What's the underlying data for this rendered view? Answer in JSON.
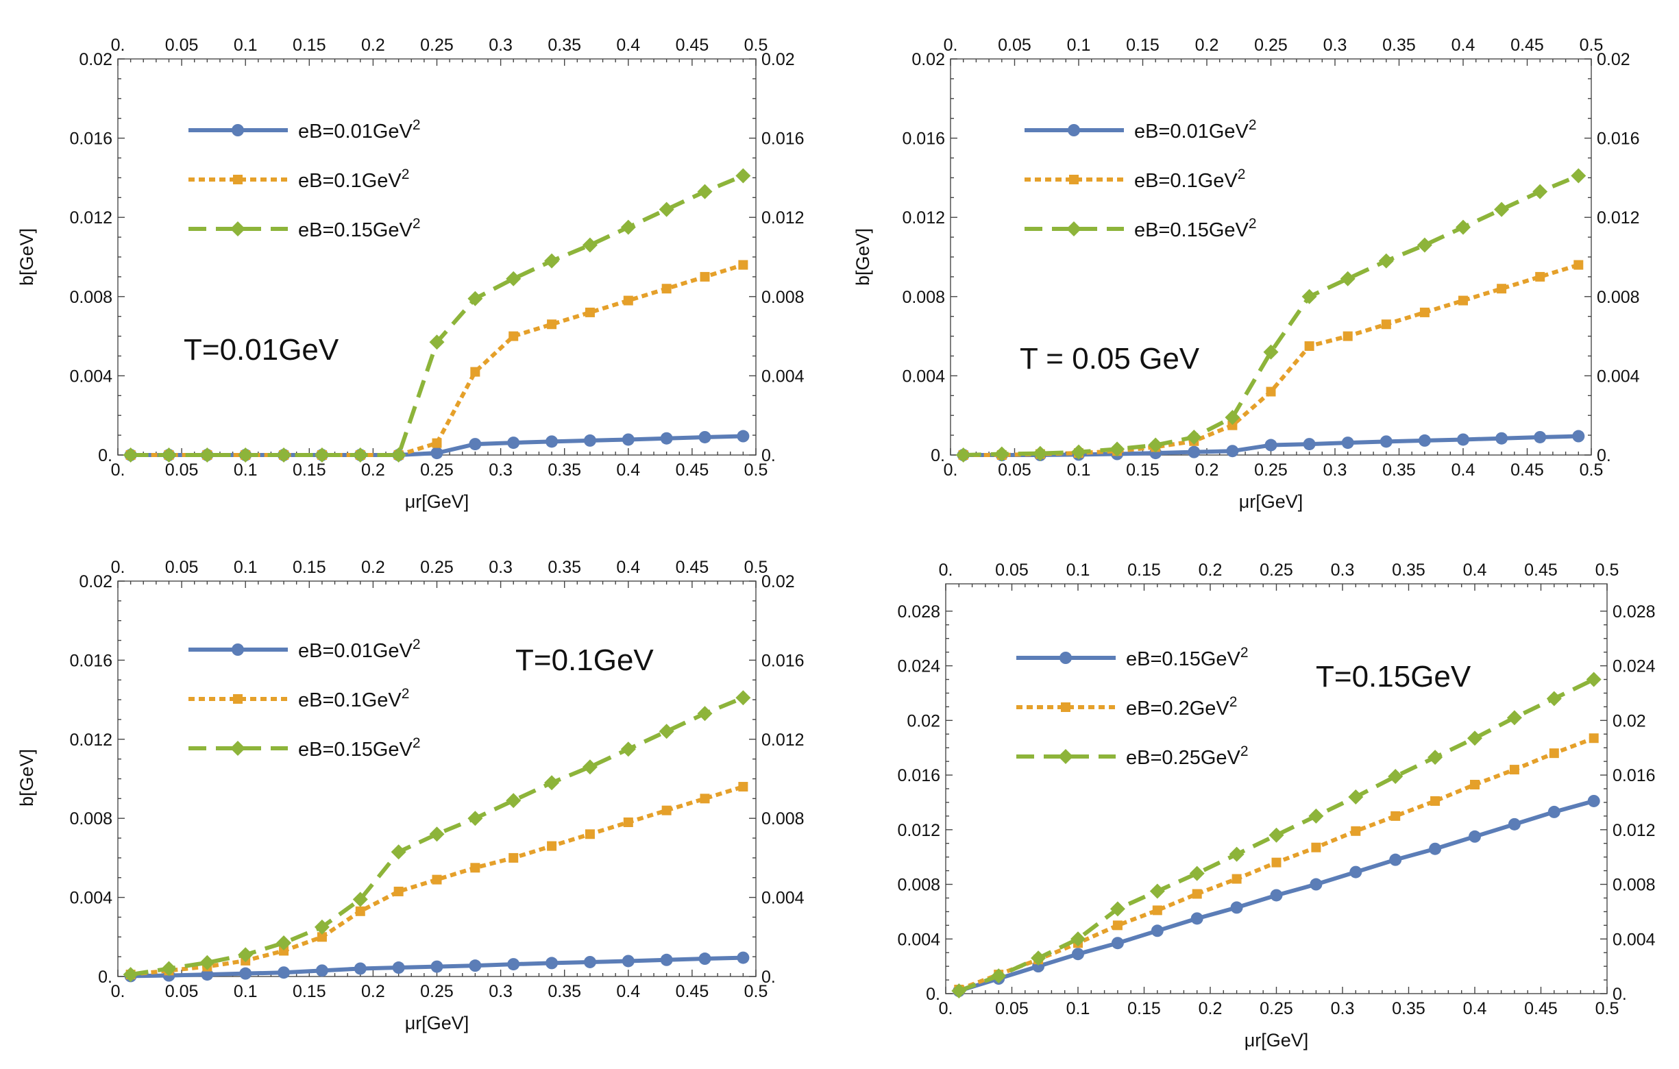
{
  "chart_data": [
    {
      "type": "line",
      "panel": "top-left",
      "annotation": "T=0.01GeV",
      "xlabel": "μr[GeV]",
      "ylabel": "b[GeV]",
      "xlim": [
        0,
        0.5
      ],
      "ylim": [
        0,
        0.02
      ],
      "xticks": [
        0,
        0.05,
        0.1,
        0.15,
        0.2,
        0.25,
        0.3,
        0.35,
        0.4,
        0.45,
        0.5
      ],
      "xtick_labels": [
        "0.",
        "0.05",
        "0.1",
        "0.15",
        "0.2",
        "0.25",
        "0.3",
        "0.35",
        "0.4",
        "0.45",
        "0.5"
      ],
      "yticks": [
        0,
        0.004,
        0.008,
        0.012,
        0.016,
        0.02
      ],
      "ytick_labels": [
        "0.",
        "0.004",
        "0.008",
        "0.012",
        "0.016",
        "0.02"
      ],
      "x": [
        0.01,
        0.04,
        0.07,
        0.1,
        0.13,
        0.16,
        0.19,
        0.22,
        0.25,
        0.28,
        0.31,
        0.34,
        0.37,
        0.4,
        0.43,
        0.46,
        0.49
      ],
      "legend_position": "top-left",
      "series": [
        {
          "name": "eB=0.01GeV",
          "sup": "2",
          "color": "#5B7DB7",
          "style": "solid",
          "marker": "circle",
          "values": [
            0,
            0,
            0,
            0,
            0,
            0,
            0,
            0,
            0.0001,
            0.00055,
            0.00062,
            0.00068,
            0.00073,
            0.00078,
            0.00084,
            0.0009,
            0.00095
          ]
        },
        {
          "name": "eB=0.1GeV",
          "sup": "2",
          "color": "#E5A02A",
          "style": "dotted",
          "marker": "square",
          "values": [
            0,
            0,
            0,
            0,
            0,
            0,
            0,
            0,
            0.0006,
            0.0042,
            0.006,
            0.0066,
            0.0072,
            0.0078,
            0.0084,
            0.009,
            0.0096
          ]
        },
        {
          "name": "eB=0.15GeV",
          "sup": "2",
          "color": "#8DB43A",
          "style": "dashed",
          "marker": "diamond",
          "values": [
            0,
            0,
            0,
            0,
            0,
            0,
            0,
            0,
            0.0057,
            0.0079,
            0.0089,
            0.0098,
            0.0106,
            0.0115,
            0.0124,
            0.0133,
            0.0141
          ]
        }
      ]
    },
    {
      "type": "line",
      "panel": "top-right",
      "annotation": "T = 0.05 GeV",
      "xlabel": "μr[GeV]",
      "ylabel": "b[GeV]",
      "xlim": [
        0,
        0.5
      ],
      "ylim": [
        0,
        0.02
      ],
      "xticks": [
        0,
        0.05,
        0.1,
        0.15,
        0.2,
        0.25,
        0.3,
        0.35,
        0.4,
        0.45,
        0.5
      ],
      "xtick_labels": [
        "0.",
        "0.05",
        "0.1",
        "0.15",
        "0.2",
        "0.25",
        "0.3",
        "0.35",
        "0.4",
        "0.45",
        "0.5"
      ],
      "yticks": [
        0,
        0.004,
        0.008,
        0.012,
        0.016,
        0.02
      ],
      "ytick_labels": [
        "0.",
        "0.004",
        "0.008",
        "0.012",
        "0.016",
        "0.02"
      ],
      "x": [
        0.01,
        0.04,
        0.07,
        0.1,
        0.13,
        0.16,
        0.19,
        0.22,
        0.25,
        0.28,
        0.31,
        0.34,
        0.37,
        0.4,
        0.43,
        0.46,
        0.49
      ],
      "legend_position": "top-left",
      "series": [
        {
          "name": "eB=0.01GeV",
          "sup": "2",
          "color": "#5B7DB7",
          "style": "solid",
          "marker": "circle",
          "values": [
            0,
            0,
            0,
            2e-05,
            5e-05,
            0.0001,
            0.00015,
            0.0002,
            0.0005,
            0.00055,
            0.00062,
            0.00068,
            0.00073,
            0.00078,
            0.00084,
            0.0009,
            0.00095
          ]
        },
        {
          "name": "eB=0.1GeV",
          "sup": "2",
          "color": "#E5A02A",
          "style": "dotted",
          "marker": "square",
          "values": [
            0,
            0,
            5e-05,
            0.0001,
            0.0002,
            0.0004,
            0.0007,
            0.0015,
            0.0032,
            0.0055,
            0.006,
            0.0066,
            0.0072,
            0.0078,
            0.0084,
            0.009,
            0.0096
          ]
        },
        {
          "name": "eB=0.15GeV",
          "sup": "2",
          "color": "#8DB43A",
          "style": "dashed",
          "marker": "diamond",
          "values": [
            0,
            5e-05,
            8e-05,
            0.00015,
            0.0003,
            0.0005,
            0.0009,
            0.0019,
            0.0052,
            0.008,
            0.0089,
            0.0098,
            0.0106,
            0.0115,
            0.0124,
            0.0133,
            0.0141
          ]
        }
      ]
    },
    {
      "type": "line",
      "panel": "bottom-left",
      "annotation": "T=0.1GeV",
      "xlabel": "μr[GeV]",
      "ylabel": "b[GeV]",
      "xlim": [
        0,
        0.5
      ],
      "ylim": [
        0,
        0.02
      ],
      "xticks": [
        0,
        0.05,
        0.1,
        0.15,
        0.2,
        0.25,
        0.3,
        0.35,
        0.4,
        0.45,
        0.5
      ],
      "xtick_labels": [
        "0.",
        "0.05",
        "0.1",
        "0.15",
        "0.2",
        "0.25",
        "0.3",
        "0.35",
        "0.4",
        "0.45",
        "0.5"
      ],
      "yticks": [
        0,
        0.004,
        0.008,
        0.012,
        0.016,
        0.02
      ],
      "ytick_labels": [
        "0.",
        "0.004",
        "0.008",
        "0.012",
        "0.016",
        "0.02"
      ],
      "x": [
        0.01,
        0.04,
        0.07,
        0.1,
        0.13,
        0.16,
        0.19,
        0.22,
        0.25,
        0.28,
        0.31,
        0.34,
        0.37,
        0.4,
        0.43,
        0.46,
        0.49
      ],
      "legend_position": "top-left",
      "series": [
        {
          "name": "eB=0.01GeV",
          "sup": "2",
          "color": "#5B7DB7",
          "style": "solid",
          "marker": "circle",
          "values": [
            2e-05,
            5e-05,
            0.0001,
            0.00015,
            0.0002,
            0.0003,
            0.0004,
            0.00045,
            0.0005,
            0.00055,
            0.00062,
            0.00068,
            0.00073,
            0.00078,
            0.00084,
            0.0009,
            0.00095
          ]
        },
        {
          "name": "eB=0.1GeV",
          "sup": "2",
          "color": "#E5A02A",
          "style": "dotted",
          "marker": "square",
          "values": [
            0.0001,
            0.0003,
            0.0005,
            0.0008,
            0.0013,
            0.002,
            0.0033,
            0.0043,
            0.0049,
            0.0055,
            0.006,
            0.0066,
            0.0072,
            0.0078,
            0.0084,
            0.009,
            0.0096
          ]
        },
        {
          "name": "eB=0.15GeV",
          "sup": "2",
          "color": "#8DB43A",
          "style": "dashed",
          "marker": "diamond",
          "values": [
            0.0001,
            0.0004,
            0.0007,
            0.0011,
            0.0017,
            0.0025,
            0.0039,
            0.0063,
            0.0072,
            0.008,
            0.0089,
            0.0098,
            0.0106,
            0.0115,
            0.0124,
            0.0133,
            0.0141
          ]
        }
      ]
    },
    {
      "type": "line",
      "panel": "bottom-right",
      "annotation": "T=0.15GeV",
      "xlabel": "μr[GeV]",
      "ylabel": "",
      "xlim": [
        0,
        0.5
      ],
      "ylim": [
        0,
        0.03
      ],
      "xticks": [
        0,
        0.05,
        0.1,
        0.15,
        0.2,
        0.25,
        0.3,
        0.35,
        0.4,
        0.45,
        0.5
      ],
      "xtick_labels": [
        "0.",
        "0.05",
        "0.1",
        "0.15",
        "0.2",
        "0.25",
        "0.3",
        "0.35",
        "0.4",
        "0.45",
        "0.5"
      ],
      "yticks": [
        0,
        0.004,
        0.008,
        0.012,
        0.016,
        0.02,
        0.024,
        0.028
      ],
      "ytick_labels": [
        "0.",
        "0.004",
        "0.008",
        "0.012",
        "0.016",
        "0.02",
        "0.024",
        "0.028"
      ],
      "x": [
        0.01,
        0.04,
        0.07,
        0.1,
        0.13,
        0.16,
        0.19,
        0.22,
        0.25,
        0.28,
        0.31,
        0.34,
        0.37,
        0.4,
        0.43,
        0.46,
        0.49
      ],
      "legend_position": "top-left",
      "series": [
        {
          "name": "eB=0.15GeV",
          "sup": "2",
          "color": "#5B7DB7",
          "style": "solid",
          "marker": "circle",
          "values": [
            0.0002,
            0.0011,
            0.002,
            0.0029,
            0.0037,
            0.0046,
            0.0055,
            0.0063,
            0.0072,
            0.008,
            0.0089,
            0.0098,
            0.0106,
            0.0115,
            0.0124,
            0.0133,
            0.0141
          ]
        },
        {
          "name": "eB=0.2GeV",
          "sup": "2",
          "color": "#E5A02A",
          "style": "dotted",
          "marker": "square",
          "values": [
            0.0003,
            0.0014,
            0.0025,
            0.0037,
            0.005,
            0.0061,
            0.0073,
            0.0084,
            0.0096,
            0.0107,
            0.0119,
            0.013,
            0.0141,
            0.0153,
            0.0164,
            0.0176,
            0.0187
          ]
        },
        {
          "name": "eB=0.25GeV",
          "sup": "2",
          "color": "#8DB43A",
          "style": "dashed",
          "marker": "diamond",
          "values": [
            0.0002,
            0.0013,
            0.0026,
            0.004,
            0.0062,
            0.0075,
            0.0088,
            0.0102,
            0.0116,
            0.013,
            0.0144,
            0.0159,
            0.0173,
            0.0187,
            0.0202,
            0.0216,
            0.023
          ]
        }
      ]
    }
  ]
}
